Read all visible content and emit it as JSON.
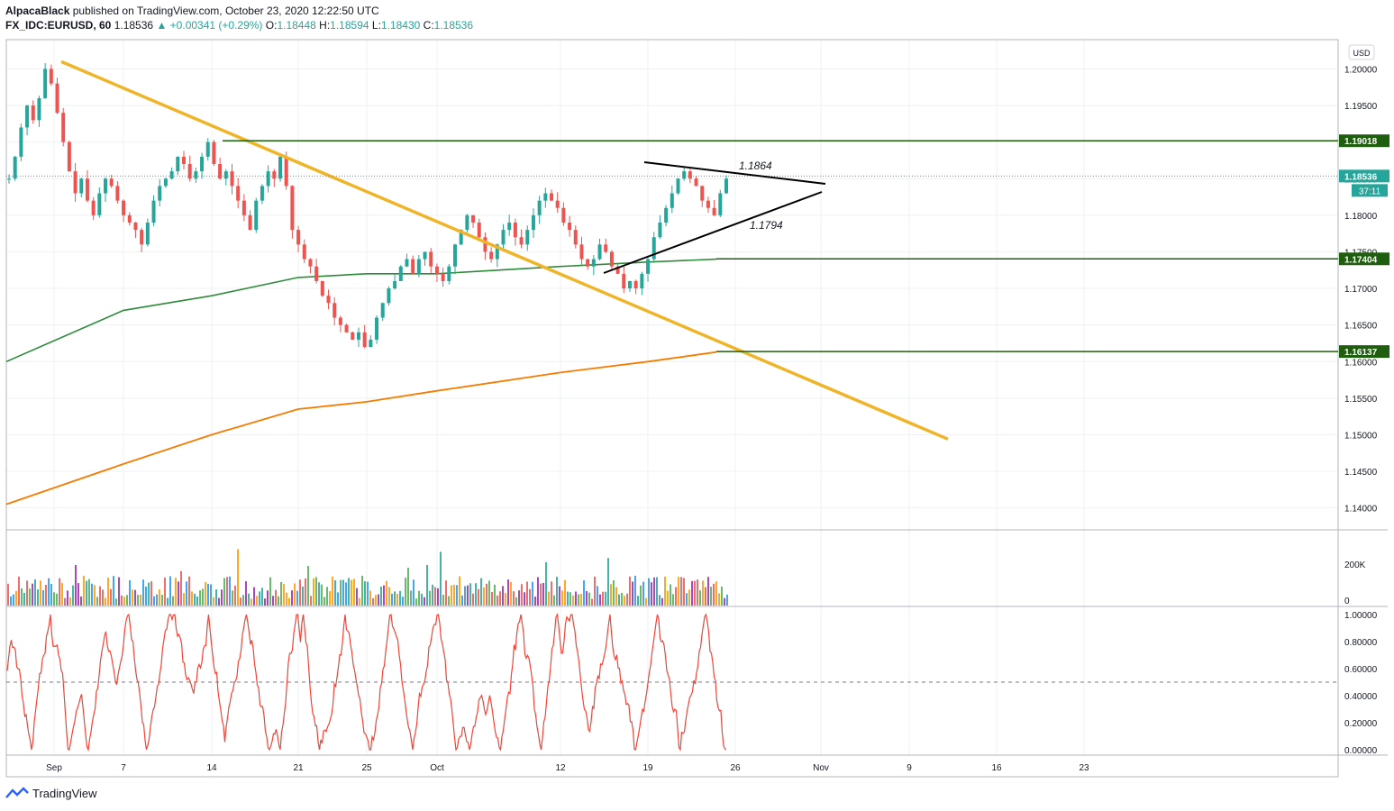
{
  "header": {
    "author": "AlpacaBlack",
    "published": "published on TradingView.com, October 23, 2020 12:22:50 UTC",
    "symbol": "FX_IDC:EURUSD, 60",
    "last": "1.18536",
    "arrow": "▲",
    "change": "+0.00341 (+0.29%)",
    "o_label": "O:",
    "o": "1.18448",
    "h_label": "H:",
    "h": "1.18594",
    "l_label": "L:",
    "l": "1.18430",
    "c_label": "C:",
    "c": "1.18536"
  },
  "footer": {
    "brand": "TradingView",
    "icon": "tradingview-logo-icon"
  },
  "chart_data": {
    "type": "candlestick",
    "currency": "USD",
    "ylim": [
      1.137,
      1.204
    ],
    "price_ticks": [
      "1.20000",
      "1.19500",
      "1.19000",
      "1.18500",
      "1.18000",
      "1.17500",
      "1.17000",
      "1.16500",
      "1.16000",
      "1.15500",
      "1.15000",
      "1.14500",
      "1.14000"
    ],
    "x_ticks": [
      "Sep",
      "7",
      "14",
      "21",
      "25",
      "Oct",
      "12",
      "19",
      "26",
      "Nov",
      "9",
      "16",
      "23"
    ],
    "last_price_label": "1.18536",
    "countdown": "37:11",
    "horizontal_levels": [
      {
        "value": 1.19018,
        "label": "1.19018"
      },
      {
        "value": 1.17404,
        "label": "1.17404"
      },
      {
        "value": 1.16137,
        "label": "1.16137"
      }
    ],
    "triangle_labels": [
      {
        "text": "1.1864",
        "value": 1.1864
      },
      {
        "text": "1.1794",
        "value": 1.1794
      }
    ],
    "candles_path": [
      1.185,
      1.188,
      1.192,
      1.195,
      1.193,
      1.196,
      1.2,
      1.198,
      1.194,
      1.19,
      1.186,
      1.183,
      1.185,
      1.182,
      1.18,
      1.183,
      1.185,
      1.184,
      1.182,
      1.18,
      1.179,
      1.178,
      1.176,
      1.179,
      1.182,
      1.184,
      1.185,
      1.186,
      1.188,
      1.187,
      1.185,
      1.186,
      1.188,
      1.19,
      1.187,
      1.185,
      1.186,
      1.184,
      1.182,
      1.18,
      1.178,
      1.182,
      1.184,
      1.186,
      1.185,
      1.188,
      1.184,
      1.178,
      1.176,
      1.174,
      1.173,
      1.171,
      1.169,
      1.168,
      1.166,
      1.165,
      1.164,
      1.163,
      1.164,
      1.162,
      1.163,
      1.166,
      1.168,
      1.17,
      1.171,
      1.173,
      1.174,
      1.172,
      1.174,
      1.175,
      1.173,
      1.172,
      1.171,
      1.173,
      1.176,
      1.178,
      1.18,
      1.179,
      1.177,
      1.175,
      1.174,
      1.176,
      1.178,
      1.179,
      1.177,
      1.176,
      1.178,
      1.18,
      1.182,
      1.183,
      1.182,
      1.181,
      1.179,
      1.178,
      1.176,
      1.174,
      1.173,
      1.174,
      1.176,
      1.175,
      1.173,
      1.172,
      1.17,
      1.171,
      1.17,
      1.172,
      1.174,
      1.177,
      1.179,
      1.181,
      1.183,
      1.185,
      1.186,
      1.185,
      1.184,
      1.182,
      1.181,
      1.18,
      1.183,
      1.185
    ],
    "sma_green": {
      "x": [
        "Aug 27",
        "Sep 7",
        "Sep 14",
        "Sep 21",
        "Sep 25",
        "Oct 1",
        "Oct 12",
        "Oct 19",
        "Oct 23"
      ],
      "values": [
        1.16,
        1.167,
        1.169,
        1.1715,
        1.172,
        1.172,
        1.173,
        1.1736,
        1.174
      ]
    },
    "sma_orange": {
      "x": [
        "Aug 27",
        "Sep 7",
        "Sep 14",
        "Sep 21",
        "Sep 25",
        "Oct 1",
        "Oct 12",
        "Oct 19",
        "Oct 23"
      ],
      "values": [
        1.1405,
        1.146,
        1.15,
        1.1535,
        1.1545,
        1.156,
        1.1585,
        1.16,
        1.1613
      ]
    },
    "trendline": {
      "from": 1.201,
      "to": 1.1494
    },
    "volume": {
      "ticks": [
        "200K",
        "0"
      ]
    },
    "oscillator": {
      "ticks": [
        "1.00000",
        "0.80000",
        "0.60000",
        "0.40000",
        "0.20000",
        "0.00000"
      ],
      "ylim": [
        0,
        1
      ],
      "midline": 0.5
    }
  },
  "colors": {
    "up": "#26a69a",
    "down": "#ef5350",
    "trend": "#f0b429",
    "sma_green": "#2e8b3a",
    "sma_orange": "#f57c00",
    "level": "#1f5e0f",
    "oscillator": "#f44336"
  }
}
